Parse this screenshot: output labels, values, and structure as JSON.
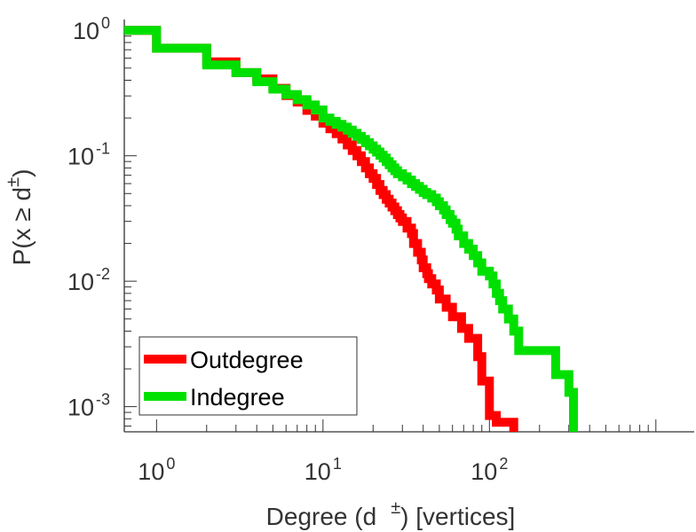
{
  "chart_data": {
    "type": "line",
    "step": true,
    "scale": {
      "x": "log",
      "y": "log"
    },
    "xlim": [
      0.64,
      1700
    ],
    "ylim": [
      0.00063,
      1.22
    ],
    "xlabel": {
      "text": "Degree (d",
      "sup": "±",
      "suffix": ") [vertices]"
    },
    "ylabel": {
      "text": "P(x ≥ d",
      "sup": "±",
      "suffix": ")"
    },
    "x_ticks": [
      {
        "base": "10",
        "exp": "0",
        "value": 1
      },
      {
        "base": "10",
        "exp": "1",
        "value": 10
      },
      {
        "base": "10",
        "exp": "2",
        "value": 100
      }
    ],
    "y_ticks": [
      {
        "base": "10",
        "exp": "0",
        "value": 1
      },
      {
        "base": "10",
        "exp": "-1",
        "value": 0.1
      },
      {
        "base": "10",
        "exp": "-2",
        "value": 0.01
      },
      {
        "base": "10",
        "exp": "-3",
        "value": 0.001
      }
    ],
    "legend_position": "bottom-left",
    "series": [
      {
        "name": "Outdegree",
        "color": "#ff0000",
        "x": [
          0.64,
          1,
          2,
          3,
          4,
          5,
          6,
          7,
          8,
          9,
          10,
          11,
          12,
          13,
          14,
          15,
          16,
          17,
          18,
          19,
          20,
          21,
          22,
          23,
          24,
          25,
          26,
          27,
          28,
          29,
          30,
          32,
          34,
          35,
          37,
          39,
          40,
          42,
          43,
          45,
          48,
          50,
          55,
          60,
          68,
          75,
          85,
          90,
          100,
          110,
          140
        ],
        "y": [
          1.0,
          0.72,
          0.56,
          0.46,
          0.41,
          0.345,
          0.302,
          0.268,
          0.23,
          0.207,
          0.182,
          0.164,
          0.15,
          0.136,
          0.122,
          0.11,
          0.1,
          0.09,
          0.08,
          0.072,
          0.066,
          0.059,
          0.053,
          0.049,
          0.045,
          0.042,
          0.039,
          0.0365,
          0.034,
          0.032,
          0.03,
          0.0265,
          0.024,
          0.02,
          0.017,
          0.0148,
          0.0128,
          0.0115,
          0.0105,
          0.0095,
          0.0085,
          0.0072,
          0.0062,
          0.0052,
          0.0042,
          0.0035,
          0.0025,
          0.0016,
          0.00085,
          0.00075,
          0.00063
        ]
      },
      {
        "name": "Indegree",
        "color": "#00e000",
        "x": [
          0.64,
          1,
          2,
          3,
          4,
          5,
          6,
          7,
          8,
          9,
          10,
          11,
          12,
          13,
          14,
          15,
          16,
          17,
          18,
          19,
          20,
          21,
          22,
          23,
          24,
          25,
          26,
          27,
          28,
          30,
          32,
          34,
          36,
          38,
          40,
          42,
          45,
          48,
          50,
          53,
          55,
          58,
          60,
          63,
          65,
          70,
          75,
          80,
          85,
          90,
          100,
          105,
          110,
          115,
          120,
          130,
          140,
          150,
          250,
          300,
          320
        ],
        "y": [
          1.0,
          0.72,
          0.53,
          0.46,
          0.39,
          0.34,
          0.308,
          0.28,
          0.254,
          0.232,
          0.2,
          0.188,
          0.178,
          0.169,
          0.16,
          0.151,
          0.143,
          0.135,
          0.127,
          0.12,
          0.113,
          0.107,
          0.101,
          0.096,
          0.09,
          0.085,
          0.08,
          0.076,
          0.072,
          0.068,
          0.064,
          0.06,
          0.057,
          0.054,
          0.051,
          0.049,
          0.046,
          0.043,
          0.04,
          0.037,
          0.034,
          0.031,
          0.029,
          0.026,
          0.023,
          0.02,
          0.018,
          0.016,
          0.014,
          0.012,
          0.011,
          0.0095,
          0.008,
          0.007,
          0.006,
          0.005,
          0.004,
          0.0028,
          0.0018,
          0.0013,
          0.00063
        ]
      }
    ]
  }
}
